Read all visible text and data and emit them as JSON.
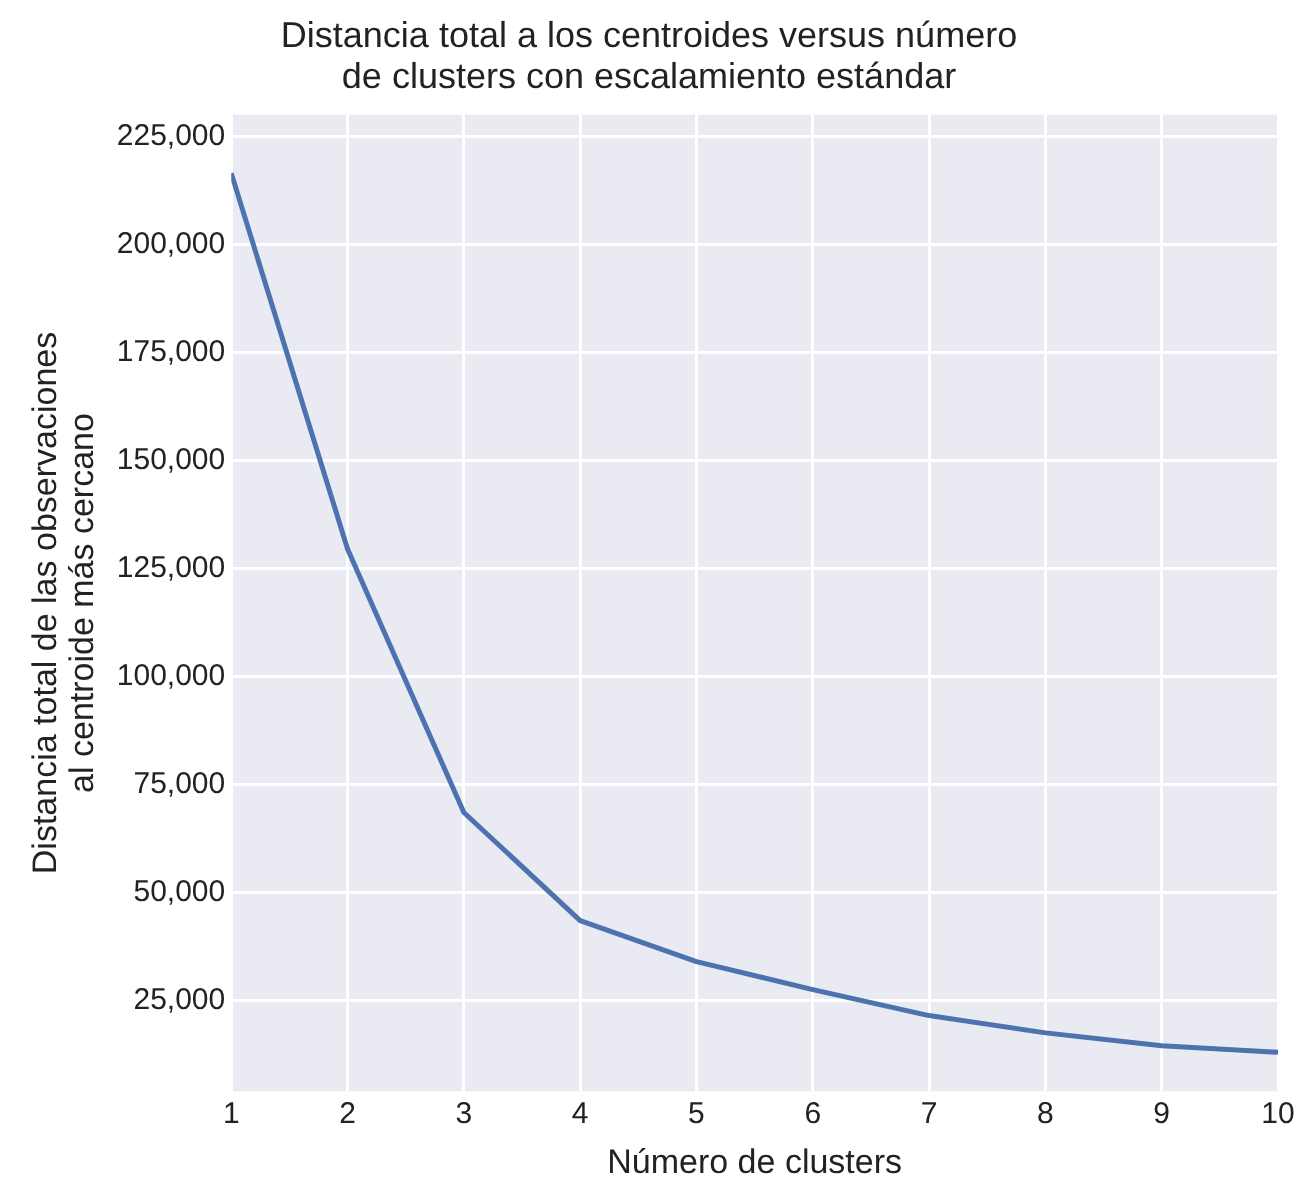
{
  "chart_data": {
    "type": "line",
    "title": "Distancia total a los centroides versus número\nde clusters con escalamiento estándar",
    "xlabel": "Número de clusters",
    "ylabel": "Distancia total de las observaciones\nal centroide más cercano",
    "x": [
      1,
      2,
      3,
      4,
      5,
      6,
      7,
      8,
      9,
      10
    ],
    "series": [
      {
        "color": "#4c72b0",
        "values": [
          216500,
          129500,
          68500,
          43500,
          34000,
          27500,
          21500,
          17500,
          14500,
          13000
        ]
      }
    ],
    "xlim": [
      1,
      10
    ],
    "xticks": [
      1,
      2,
      3,
      4,
      5,
      6,
      7,
      8,
      9,
      10
    ],
    "ylim": [
      4000,
      230000
    ],
    "yticks": [
      {
        "value": 25000,
        "label": "25,000"
      },
      {
        "value": 50000,
        "label": "50,000"
      },
      {
        "value": 75000,
        "label": "75,000"
      },
      {
        "value": 100000,
        "label": "100,000"
      },
      {
        "value": 125000,
        "label": "125,000"
      },
      {
        "value": 150000,
        "label": "150,000"
      },
      {
        "value": 175000,
        "label": "175,000"
      },
      {
        "value": 200000,
        "label": "200,000"
      },
      {
        "value": 225000,
        "label": "225,000"
      }
    ],
    "grid": true,
    "legend": false,
    "marker": "none",
    "line_style": "solid"
  }
}
